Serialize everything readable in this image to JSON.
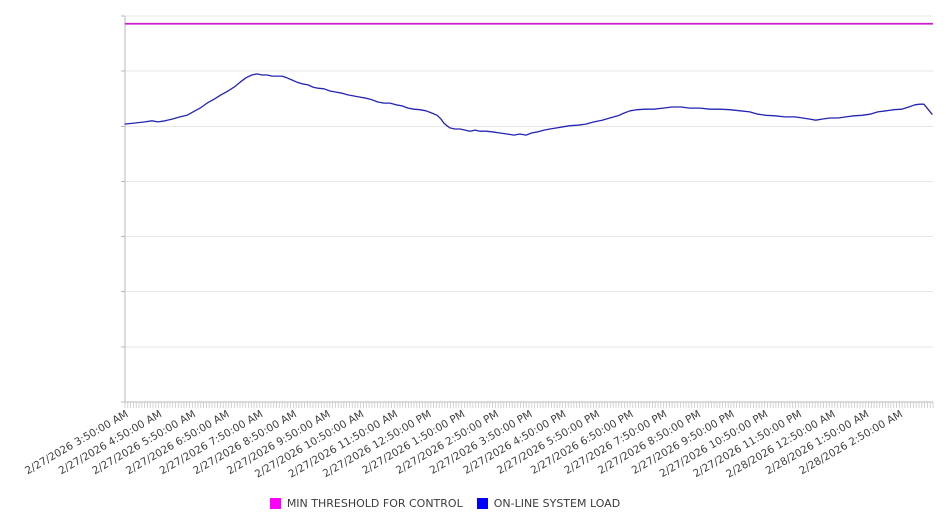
{
  "chart_data": {
    "type": "line",
    "title": "",
    "xlabel": "",
    "ylabel": "",
    "xlim": [
      0,
      24
    ],
    "ylim": [
      0,
      7
    ],
    "y_grid_step": 1,
    "y_axis_labels_visible": false,
    "grid": "horizontal",
    "legend_position": "bottom-center",
    "x_minor_ticks_per_interval": 12,
    "x_tick_label_rotation_deg": -30,
    "x_tick_labels": [
      "2/27/2026 3:50:00 AM",
      "2/27/2026 4:50:00 AM",
      "2/27/2026 5:50:00 AM",
      "2/27/2026 6:50:00 AM",
      "2/27/2026 7:50:00 AM",
      "2/27/2026 8:50:00 AM",
      "2/27/2026 9:50:00 AM",
      "2/27/2026 10:50:00 AM",
      "2/27/2026 11:50:00 AM",
      "2/27/2026 12:50:00 PM",
      "2/27/2026 1:50:00 PM",
      "2/27/2026 2:50:00 PM",
      "2/27/2026 3:50:00 PM",
      "2/27/2026 4:50:00 PM",
      "2/27/2026 5:50:00 PM",
      "2/27/2026 6:50:00 PM",
      "2/27/2026 7:50:00 PM",
      "2/27/2026 8:50:00 PM",
      "2/27/2026 9:50:00 PM",
      "2/27/2026 10:50:00 PM",
      "2/27/2026 11:50:00 PM",
      "2/28/2026 12:50:00 AM",
      "2/28/2026 1:50:00 AM",
      "2/28/2026 2:50:00 AM"
    ],
    "colors": {
      "background": "#ffffff",
      "grid": "#e7e7e7",
      "axis": "#b8b8b8",
      "minor_tick": "#c9c9c9",
      "tick_label": "#3f3f3f",
      "legend_text": "#3c3c3c"
    },
    "series": [
      {
        "name": "MIN THRESHOLD FOR CONTROL",
        "type": "hline",
        "value": 6.86,
        "line_color": "#cb1ecb",
        "legend_color": "#ff00ff",
        "line_width": 1.8
      },
      {
        "name": "ON-LINE SYSTEM LOAD",
        "type": "line",
        "line_color": "#2424b4",
        "legend_color": "#0000ff",
        "line_width": 1.3,
        "points": [
          [
            0.0,
            5.04
          ],
          [
            0.3,
            5.06
          ],
          [
            0.59,
            5.08
          ],
          [
            0.8,
            5.1
          ],
          [
            0.98,
            5.08
          ],
          [
            1.19,
            5.1
          ],
          [
            1.4,
            5.13
          ],
          [
            1.63,
            5.17
          ],
          [
            1.84,
            5.2
          ],
          [
            2.02,
            5.26
          ],
          [
            2.23,
            5.33
          ],
          [
            2.44,
            5.42
          ],
          [
            2.64,
            5.49
          ],
          [
            2.85,
            5.57
          ],
          [
            3.06,
            5.64
          ],
          [
            3.24,
            5.71
          ],
          [
            3.42,
            5.8
          ],
          [
            3.59,
            5.88
          ],
          [
            3.77,
            5.93
          ],
          [
            3.92,
            5.95
          ],
          [
            4.07,
            5.93
          ],
          [
            4.22,
            5.93
          ],
          [
            4.37,
            5.91
          ],
          [
            4.51,
            5.91
          ],
          [
            4.66,
            5.91
          ],
          [
            4.81,
            5.88
          ],
          [
            4.96,
            5.84
          ],
          [
            5.11,
            5.8
          ],
          [
            5.26,
            5.77
          ],
          [
            5.44,
            5.75
          ],
          [
            5.58,
            5.71
          ],
          [
            5.73,
            5.69
          ],
          [
            5.91,
            5.68
          ],
          [
            6.09,
            5.64
          ],
          [
            6.27,
            5.62
          ],
          [
            6.45,
            5.6
          ],
          [
            6.62,
            5.57
          ],
          [
            6.8,
            5.55
          ],
          [
            6.98,
            5.53
          ],
          [
            7.16,
            5.51
          ],
          [
            7.34,
            5.48
          ],
          [
            7.51,
            5.44
          ],
          [
            7.69,
            5.42
          ],
          [
            7.87,
            5.42
          ],
          [
            8.05,
            5.39
          ],
          [
            8.23,
            5.37
          ],
          [
            8.41,
            5.33
          ],
          [
            8.58,
            5.31
          ],
          [
            8.76,
            5.3
          ],
          [
            8.94,
            5.28
          ],
          [
            9.12,
            5.24
          ],
          [
            9.27,
            5.2
          ],
          [
            9.39,
            5.13
          ],
          [
            9.47,
            5.06
          ],
          [
            9.56,
            5.01
          ],
          [
            9.65,
            4.97
          ],
          [
            9.8,
            4.95
          ],
          [
            9.95,
            4.95
          ],
          [
            10.1,
            4.93
          ],
          [
            10.25,
            4.91
          ],
          [
            10.4,
            4.93
          ],
          [
            10.54,
            4.91
          ],
          [
            10.72,
            4.91
          ],
          [
            10.9,
            4.9
          ],
          [
            11.11,
            4.88
          ],
          [
            11.35,
            4.86
          ],
          [
            11.55,
            4.84
          ],
          [
            11.73,
            4.86
          ],
          [
            11.91,
            4.84
          ],
          [
            12.09,
            4.88
          ],
          [
            12.27,
            4.9
          ],
          [
            12.45,
            4.93
          ],
          [
            12.62,
            4.95
          ],
          [
            12.83,
            4.97
          ],
          [
            13.01,
            4.99
          ],
          [
            13.22,
            5.01
          ],
          [
            13.45,
            5.02
          ],
          [
            13.69,
            5.04
          ],
          [
            13.93,
            5.08
          ],
          [
            14.17,
            5.11
          ],
          [
            14.4,
            5.15
          ],
          [
            14.64,
            5.19
          ],
          [
            14.82,
            5.24
          ],
          [
            15.0,
            5.28
          ],
          [
            15.21,
            5.3
          ],
          [
            15.45,
            5.31
          ],
          [
            15.71,
            5.31
          ],
          [
            15.98,
            5.33
          ],
          [
            16.25,
            5.35
          ],
          [
            16.51,
            5.35
          ],
          [
            16.78,
            5.33
          ],
          [
            17.08,
            5.33
          ],
          [
            17.38,
            5.31
          ],
          [
            17.67,
            5.31
          ],
          [
            17.97,
            5.3
          ],
          [
            18.27,
            5.28
          ],
          [
            18.56,
            5.26
          ],
          [
            18.8,
            5.22
          ],
          [
            19.04,
            5.2
          ],
          [
            19.31,
            5.19
          ],
          [
            19.6,
            5.17
          ],
          [
            19.9,
            5.17
          ],
          [
            20.13,
            5.15
          ],
          [
            20.34,
            5.13
          ],
          [
            20.52,
            5.11
          ],
          [
            20.7,
            5.13
          ],
          [
            20.94,
            5.15
          ],
          [
            21.18,
            5.15
          ],
          [
            21.41,
            5.17
          ],
          [
            21.65,
            5.19
          ],
          [
            21.89,
            5.2
          ],
          [
            22.13,
            5.22
          ],
          [
            22.36,
            5.26
          ],
          [
            22.6,
            5.28
          ],
          [
            22.84,
            5.3
          ],
          [
            23.07,
            5.31
          ],
          [
            23.28,
            5.35
          ],
          [
            23.46,
            5.39
          ],
          [
            23.61,
            5.4
          ],
          [
            23.73,
            5.4
          ],
          [
            23.85,
            5.31
          ],
          [
            23.97,
            5.22
          ]
        ]
      }
    ]
  }
}
